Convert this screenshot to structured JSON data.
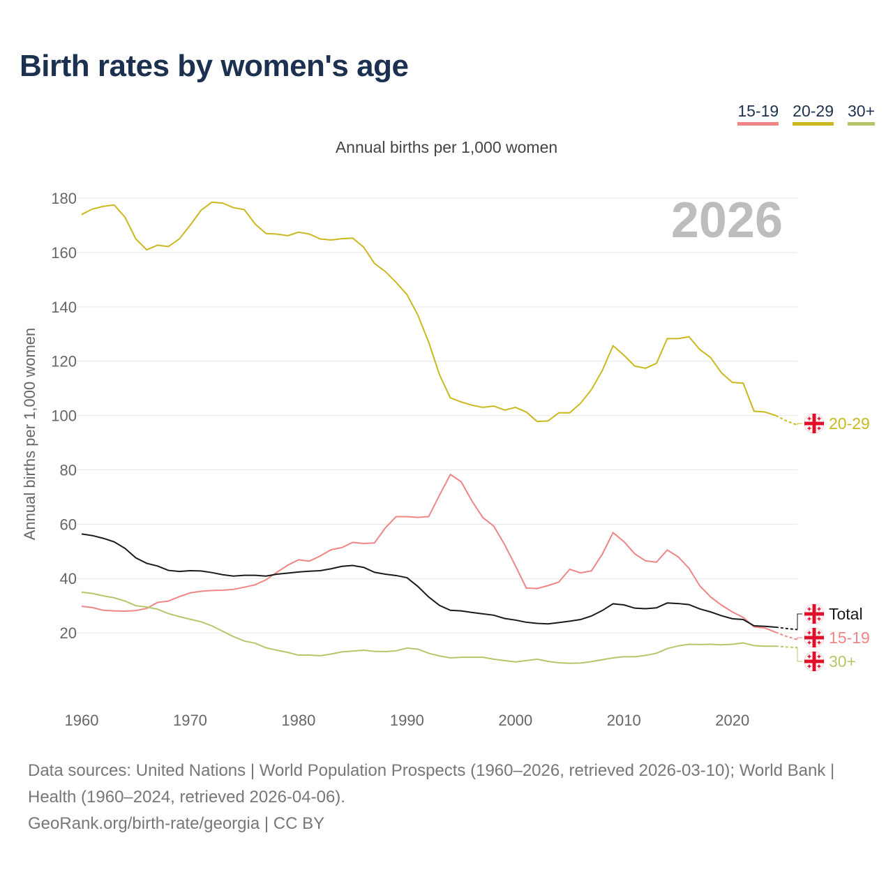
{
  "title": "Birth rates by women's age",
  "legend": [
    {
      "label": "15-19",
      "color": "#ef8585"
    },
    {
      "label": "20-29",
      "color": "#cbb81f"
    },
    {
      "label": "30+",
      "color": "#b3c76a"
    }
  ],
  "footer": {
    "sources": "Data sources: United Nations | World Population Prospects (1960–2026, retrieved 2026-03-10); World Bank | Health (1960–2024, retrieved 2026-04-06).",
    "credit": "GeoRank.org/birth-rate/georgia | CC BY"
  },
  "flag_icon": "georgia-flag-icon",
  "chart_data": {
    "type": "line",
    "title": "Birth rates by women's age",
    "subtitle": "Annual births per 1,000 women",
    "ylabel": "Annual births per 1,000 women",
    "xlabel": "",
    "year_label": "2026",
    "xlim": [
      1960,
      2026
    ],
    "ylim": [
      0,
      180
    ],
    "xticks": [
      "1960",
      "1970",
      "1980",
      "1990",
      "2000",
      "2010",
      "2020"
    ],
    "yticks": [
      "20",
      "40",
      "60",
      "80",
      "100",
      "120",
      "140",
      "160",
      "180"
    ],
    "grid": true,
    "projection_start": 2024,
    "x_start": 1960,
    "series": [
      {
        "name": "20-29",
        "color": "#cbb81f",
        "end_label": "20-29",
        "values": [
          174,
          176,
          177,
          177.5,
          173,
          165,
          161,
          162.7,
          162.2,
          165,
          170,
          175.5,
          178.5,
          178.2,
          176.5,
          175.8,
          170.5,
          167,
          166.8,
          166.2,
          167.5,
          166.8,
          165,
          164.6,
          165.1,
          165.3,
          162,
          156,
          153,
          149,
          144.5,
          137,
          127,
          115,
          106.5,
          105,
          103.8,
          103,
          103.5,
          102,
          103,
          101.3,
          97.8,
          98,
          101,
          101,
          104.5,
          109.5,
          116.5,
          125.7,
          122.2,
          118.2,
          117.4,
          119.2,
          128.3,
          128.3,
          129,
          124.3,
          121.3,
          115.7,
          112.2,
          111.9,
          101.6,
          101.3,
          100,
          98,
          96.5
        ]
      },
      {
        "name": "15-19",
        "color": "#ef8585",
        "end_label": "15-19",
        "values": [
          29.8,
          29.3,
          28.3,
          28.1,
          28,
          28.2,
          29,
          31.2,
          31.7,
          33.3,
          34.7,
          35.3,
          35.6,
          35.7,
          36,
          36.8,
          37.7,
          39.5,
          42.3,
          44.9,
          46.9,
          46.4,
          48.3,
          50.6,
          51.4,
          53.3,
          52.9,
          53.1,
          58.6,
          62.8,
          62.8,
          62.5,
          62.8,
          70.7,
          78.3,
          75.6,
          68.5,
          62.4,
          59.3,
          52.5,
          44.7,
          36.5,
          36.3,
          37.4,
          38.7,
          43.4,
          42.1,
          42.8,
          48.9,
          56.9,
          53.6,
          49.1,
          46.5,
          46,
          50.5,
          48,
          43.8,
          37.3,
          33.2,
          30.2,
          27.7,
          25.7,
          22.2,
          21.8,
          20.2,
          18.7,
          17.5
        ]
      },
      {
        "name": "Total",
        "color": "#1a1a1a",
        "end_label": "Total",
        "values": [
          56.4,
          55.8,
          54.8,
          53.5,
          51.1,
          47.6,
          45.6,
          44.6,
          43,
          42.6,
          42.9,
          42.8,
          42.2,
          41.4,
          40.9,
          41.2,
          41.2,
          40.9,
          41.6,
          42,
          42.4,
          42.7,
          42.9,
          43.6,
          44.5,
          44.8,
          44.1,
          42.3,
          41.6,
          41.1,
          40.3,
          37.1,
          33.2,
          30.1,
          28.3,
          28.1,
          27.5,
          27,
          26.5,
          25.3,
          24.7,
          23.9,
          23.5,
          23.3,
          23.8,
          24.3,
          24.9,
          26.2,
          28.2,
          30.7,
          30.3,
          29.1,
          28.9,
          29.2,
          31,
          30.8,
          30.4,
          28.8,
          27.7,
          26.3,
          25.2,
          24.9,
          22.6,
          22.4,
          22.1,
          21.6,
          21.2
        ]
      },
      {
        "name": "30+",
        "color": "#b3c76a",
        "end_label": "30+",
        "values": [
          35,
          34.5,
          33.6,
          32.9,
          31.7,
          30,
          29.5,
          28.7,
          27.1,
          26,
          25,
          24.1,
          22.6,
          20.6,
          18.6,
          17,
          16.2,
          14.5,
          13.6,
          12.8,
          11.8,
          11.8,
          11.6,
          12.2,
          13,
          13.3,
          13.6,
          13.2,
          13.1,
          13.4,
          14.4,
          14,
          12.5,
          11.5,
          10.8,
          11,
          11,
          11,
          10.3,
          9.8,
          9.3,
          9.8,
          10.3,
          9.5,
          9,
          8.8,
          8.9,
          9.4,
          10.1,
          10.8,
          11.2,
          11.2,
          11.7,
          12.5,
          14.2,
          15.2,
          15.8,
          15.7,
          15.8,
          15.6,
          15.8,
          16.3,
          15.3,
          15.1,
          15.1,
          14.8,
          14.6
        ]
      }
    ]
  }
}
